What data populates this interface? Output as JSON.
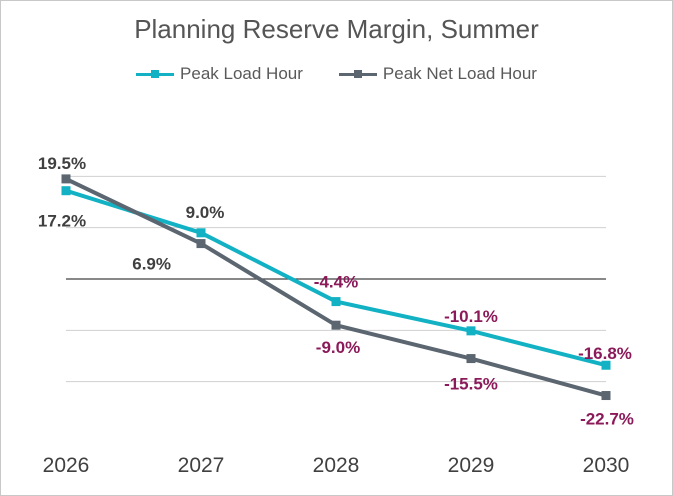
{
  "chart_data": {
    "type": "line",
    "title": "Planning Reserve Margin, Summer",
    "xlabel": "",
    "ylabel": "",
    "categories": [
      "2026",
      "2027",
      "2028",
      "2029",
      "2030"
    ],
    "ylim": [
      -30,
      30
    ],
    "y_gridlines": [
      20,
      10,
      0,
      -10,
      -20
    ],
    "y_tick_labels_shown": false,
    "legend_position": "top",
    "series": [
      {
        "name": "Peak Load Hour",
        "color": "#12B2C4",
        "values": [
          17.2,
          9.0,
          -4.4,
          -10.1,
          -16.8
        ],
        "labels": [
          "17.2%",
          "9.0%",
          "-4.4%",
          "-10.1%",
          "-16.8%"
        ]
      },
      {
        "name": "Peak Net Load Hour",
        "color": "#5B6670",
        "values": [
          19.5,
          6.9,
          -9.0,
          -15.5,
          -22.7
        ],
        "labels": [
          "19.5%",
          "6.9%",
          "-9.0%",
          "-15.5%",
          "-22.7%"
        ]
      }
    ],
    "label_colors": {
      "positive": "#404040",
      "negative": "#8B1A5A"
    }
  }
}
